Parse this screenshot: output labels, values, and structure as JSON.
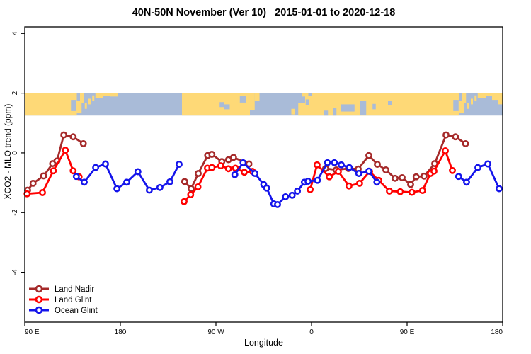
{
  "title": "40N-50N November (Ver 10)   2015-01-01 to 2020-12-18",
  "chart_data": {
    "type": "line",
    "title": "40N-50N November (Ver 10)   2015-01-01 to 2020-12-18",
    "xlabel": "Longitude",
    "ylabel": "XCO2 - MLO trend (ppm)",
    "grid": false,
    "legend_position": "bottom-left-inside",
    "x_axis": {
      "xlim_deg_east_of_90E": [
        0,
        450
      ],
      "ticks_deg": [
        0,
        90,
        180,
        270,
        360,
        450
      ],
      "tick_labels": [
        "90 E",
        "180",
        "90 W",
        "0",
        "90 E",
        "180"
      ]
    },
    "y_axis": {
      "ylim": [
        -5.67,
        4.22
      ],
      "ticks": [
        -4,
        -2,
        0,
        2,
        4
      ],
      "tick_labels": [
        "-4",
        "-2",
        "0",
        "2",
        "4"
      ]
    },
    "series": [
      {
        "name": "Land Nadir",
        "color": "#A52A2A",
        "segments": [
          [
            [
              2.7,
              -1.25
            ],
            [
              7.8,
              -1.02
            ],
            [
              17.8,
              -0.77
            ],
            [
              26.2,
              -0.36
            ],
            [
              30.3,
              -0.27
            ],
            [
              36.7,
              0.6
            ],
            [
              45.5,
              0.54
            ],
            [
              55.1,
              0.31
            ]
          ],
          [
            [
              150.5,
              -0.96
            ],
            [
              156.7,
              -1.2
            ],
            [
              163.3,
              -0.69
            ],
            [
              172.2,
              -0.09
            ],
            [
              176.2,
              -0.05
            ],
            [
              185.5,
              -0.29
            ],
            [
              191.8,
              -0.23
            ],
            [
              196.5,
              -0.15
            ],
            [
              211.1,
              -0.37
            ]
          ],
          [
            [
              283.3,
              -0.52
            ],
            [
              293.3,
              -0.57
            ],
            [
              304.7,
              -0.52
            ],
            [
              314,
              -0.54
            ],
            [
              324,
              -0.09
            ],
            [
              332,
              -0.38
            ],
            [
              340,
              -0.57
            ],
            [
              348.7,
              -0.85
            ],
            [
              355.3,
              -0.83
            ],
            [
              363.3,
              -1.06
            ],
            [
              368.5,
              -0.8
            ],
            [
              376,
              -0.78
            ],
            [
              386,
              -0.36
            ],
            [
              396.7,
              0.6
            ],
            [
              405.5,
              0.54
            ],
            [
              415.1,
              0.31
            ]
          ]
        ]
      },
      {
        "name": "Land Glint",
        "color": "#FF0000",
        "segments": [
          [
            [
              2.2,
              -1.37
            ],
            [
              16.7,
              -1.33
            ],
            [
              26.9,
              -0.6
            ],
            [
              38.2,
              0.09
            ],
            [
              45.5,
              -0.6
            ],
            [
              51.1,
              -0.8
            ]
          ],
          [
            [
              150,
              -1.63
            ],
            [
              156.2,
              -1.4
            ],
            [
              163.1,
              -1.14
            ],
            [
              172,
              -0.51
            ],
            [
              176.2,
              -0.49
            ],
            [
              184.5,
              -0.43
            ],
            [
              191.8,
              -0.53
            ],
            [
              198.4,
              -0.51
            ],
            [
              206.7,
              -0.65
            ],
            [
              214.4,
              -0.62
            ]
          ],
          [
            [
              268.7,
              -1.23
            ],
            [
              275.3,
              -0.4
            ],
            [
              286.7,
              -0.8
            ],
            [
              295.3,
              -0.62
            ],
            [
              305.3,
              -1.11
            ],
            [
              315.3,
              -1.02
            ],
            [
              324.7,
              -0.62
            ],
            [
              333.3,
              -0.92
            ],
            [
              343.3,
              -1.28
            ],
            [
              353.5,
              -1.3
            ],
            [
              364.5,
              -1.32
            ],
            [
              374.5,
              -1.26
            ],
            [
              382,
              -0.69
            ],
            [
              385.3,
              -0.61
            ],
            [
              396,
              0.07
            ],
            [
              402.7,
              -0.59
            ]
          ]
        ]
      },
      {
        "name": "Ocean Glint",
        "color": "#1414EB",
        "segments": [
          [
            [
              48.5,
              -0.79
            ],
            [
              56,
              -0.98
            ],
            [
              66.7,
              -0.49
            ],
            [
              76,
              -0.37
            ],
            [
              86.7,
              -1.2
            ],
            [
              96,
              -0.98
            ],
            [
              106.5,
              -0.63
            ],
            [
              117.3,
              -1.25
            ],
            [
              127.3,
              -1.16
            ],
            [
              136.7,
              -0.97
            ],
            [
              145.3,
              -0.38
            ]
          ],
          [
            [
              197.8,
              -0.73
            ],
            [
              205.5,
              -0.33
            ],
            [
              216.7,
              -0.69
            ],
            [
              225,
              -1.06
            ],
            [
              227.8,
              -1.18
            ],
            [
              234.5,
              -1.71
            ],
            [
              238,
              -1.73
            ],
            [
              245.5,
              -1.47
            ],
            [
              251.8,
              -1.42
            ],
            [
              256.7,
              -1.28
            ],
            [
              263.3,
              -0.98
            ],
            [
              266.7,
              -0.95
            ],
            [
              275.5,
              -0.92
            ],
            [
              285,
              -0.33
            ],
            [
              291.5,
              -0.33
            ],
            [
              298,
              -0.4
            ],
            [
              305.5,
              -0.49
            ],
            [
              314.5,
              -0.69
            ],
            [
              324,
              -0.61
            ],
            [
              331.5,
              -0.98
            ]
          ],
          [
            [
              408.5,
              -0.79
            ],
            [
              416,
              -0.98
            ],
            [
              426.7,
              -0.49
            ],
            [
              436,
              -0.37
            ],
            [
              446.7,
              -1.2
            ]
          ]
        ]
      }
    ],
    "map_band": {
      "description": "latitude strip map 40N-50N drawn across the plot",
      "ppm_range": [
        1.25,
        2.0
      ],
      "ocean_color": "#A9BBD8",
      "land_color": "#FED977",
      "land_segments_deg": [
        [
          0,
          49
        ],
        [
          148,
          212
        ],
        [
          270,
          409
        ]
      ],
      "land_patches": [
        {
          "d": [
            49,
            53.5
          ],
          "f": [
            0.35,
            0.9
          ]
        },
        {
          "d": [
            52,
            55.5
          ],
          "f": [
            0,
            0.45
          ]
        },
        {
          "d": [
            56.5,
            58.5
          ],
          "f": [
            0.45,
            0.7
          ]
        },
        {
          "d": [
            60,
            62
          ],
          "f": [
            0.25,
            0.5
          ]
        },
        {
          "d": [
            63.5,
            65.5
          ],
          "f": [
            0.1,
            0.35
          ]
        },
        {
          "d": [
            66.5,
            74
          ],
          "f": [
            0,
            0.22
          ]
        },
        {
          "d": [
            74,
            80
          ],
          "f": [
            0,
            0.12
          ]
        },
        {
          "d": [
            80,
            88
          ],
          "f": [
            0,
            0.15
          ]
        },
        {
          "d": [
            212,
            216.5
          ],
          "f": [
            0,
            0.75
          ]
        },
        {
          "d": [
            216.5,
            221
          ],
          "f": [
            0,
            0.35
          ]
        },
        {
          "d": [
            251,
            254.5
          ],
          "f": [
            0.7,
            0.95
          ]
        },
        {
          "d": [
            257.5,
            264
          ],
          "f": [
            0.45,
            1
          ]
        },
        {
          "d": [
            264,
            270
          ],
          "f": [
            0.12,
            1
          ]
        },
        {
          "d": [
            261,
            267
          ],
          "f": [
            0,
            0.15
          ]
        },
        {
          "d": [
            409,
            413.5
          ],
          "f": [
            0.35,
            0.9
          ]
        },
        {
          "d": [
            412,
            415.5
          ],
          "f": [
            0,
            0.45
          ]
        },
        {
          "d": [
            416.5,
            418.5
          ],
          "f": [
            0.45,
            0.7
          ]
        },
        {
          "d": [
            420,
            422
          ],
          "f": [
            0.25,
            0.5
          ]
        },
        {
          "d": [
            423.5,
            425.5
          ],
          "f": [
            0.1,
            0.35
          ]
        },
        {
          "d": [
            426.5,
            434
          ],
          "f": [
            0,
            0.22
          ]
        },
        {
          "d": [
            434,
            440
          ],
          "f": [
            0,
            0.12
          ]
        },
        {
          "d": [
            440,
            446
          ],
          "f": [
            0,
            0.3
          ]
        },
        {
          "d": [
            446,
            450
          ],
          "f": [
            0,
            0.5
          ]
        }
      ],
      "ocean_patches": [
        {
          "d": [
            43.5,
            48.5
          ],
          "f": [
            0.3,
            0.8
          ]
        },
        {
          "d": [
            403.5,
            408.5
          ],
          "f": [
            0.3,
            0.8
          ]
        },
        {
          "d": [
            183.5,
            188
          ],
          "f": [
            0.4,
            0.62
          ]
        },
        {
          "d": [
            188,
            193
          ],
          "f": [
            0.5,
            0.72
          ]
        },
        {
          "d": [
            202.5,
            208.5
          ],
          "f": [
            0.12,
            0.42
          ]
        },
        {
          "d": [
            264.5,
            268
          ],
          "f": [
            0.28,
            0.52
          ]
        },
        {
          "d": [
            282,
            285.5
          ],
          "f": [
            0.78,
            1
          ]
        },
        {
          "d": [
            290,
            293.5
          ],
          "f": [
            0.66,
            1
          ]
        },
        {
          "d": [
            297.5,
            310.5
          ],
          "f": [
            0.5,
            0.82
          ]
        },
        {
          "d": [
            315.5,
            321.5
          ],
          "f": [
            0.35,
            0.97
          ]
        },
        {
          "d": [
            327.5,
            330.5
          ],
          "f": [
            0.48,
            0.72
          ]
        },
        {
          "d": [
            342,
            345.5
          ],
          "f": [
            0.35,
            0.52
          ]
        }
      ]
    }
  },
  "legend": {
    "entries": [
      {
        "label": "Land Nadir"
      },
      {
        "label": "Land Glint"
      },
      {
        "label": "Ocean Glint"
      }
    ]
  }
}
